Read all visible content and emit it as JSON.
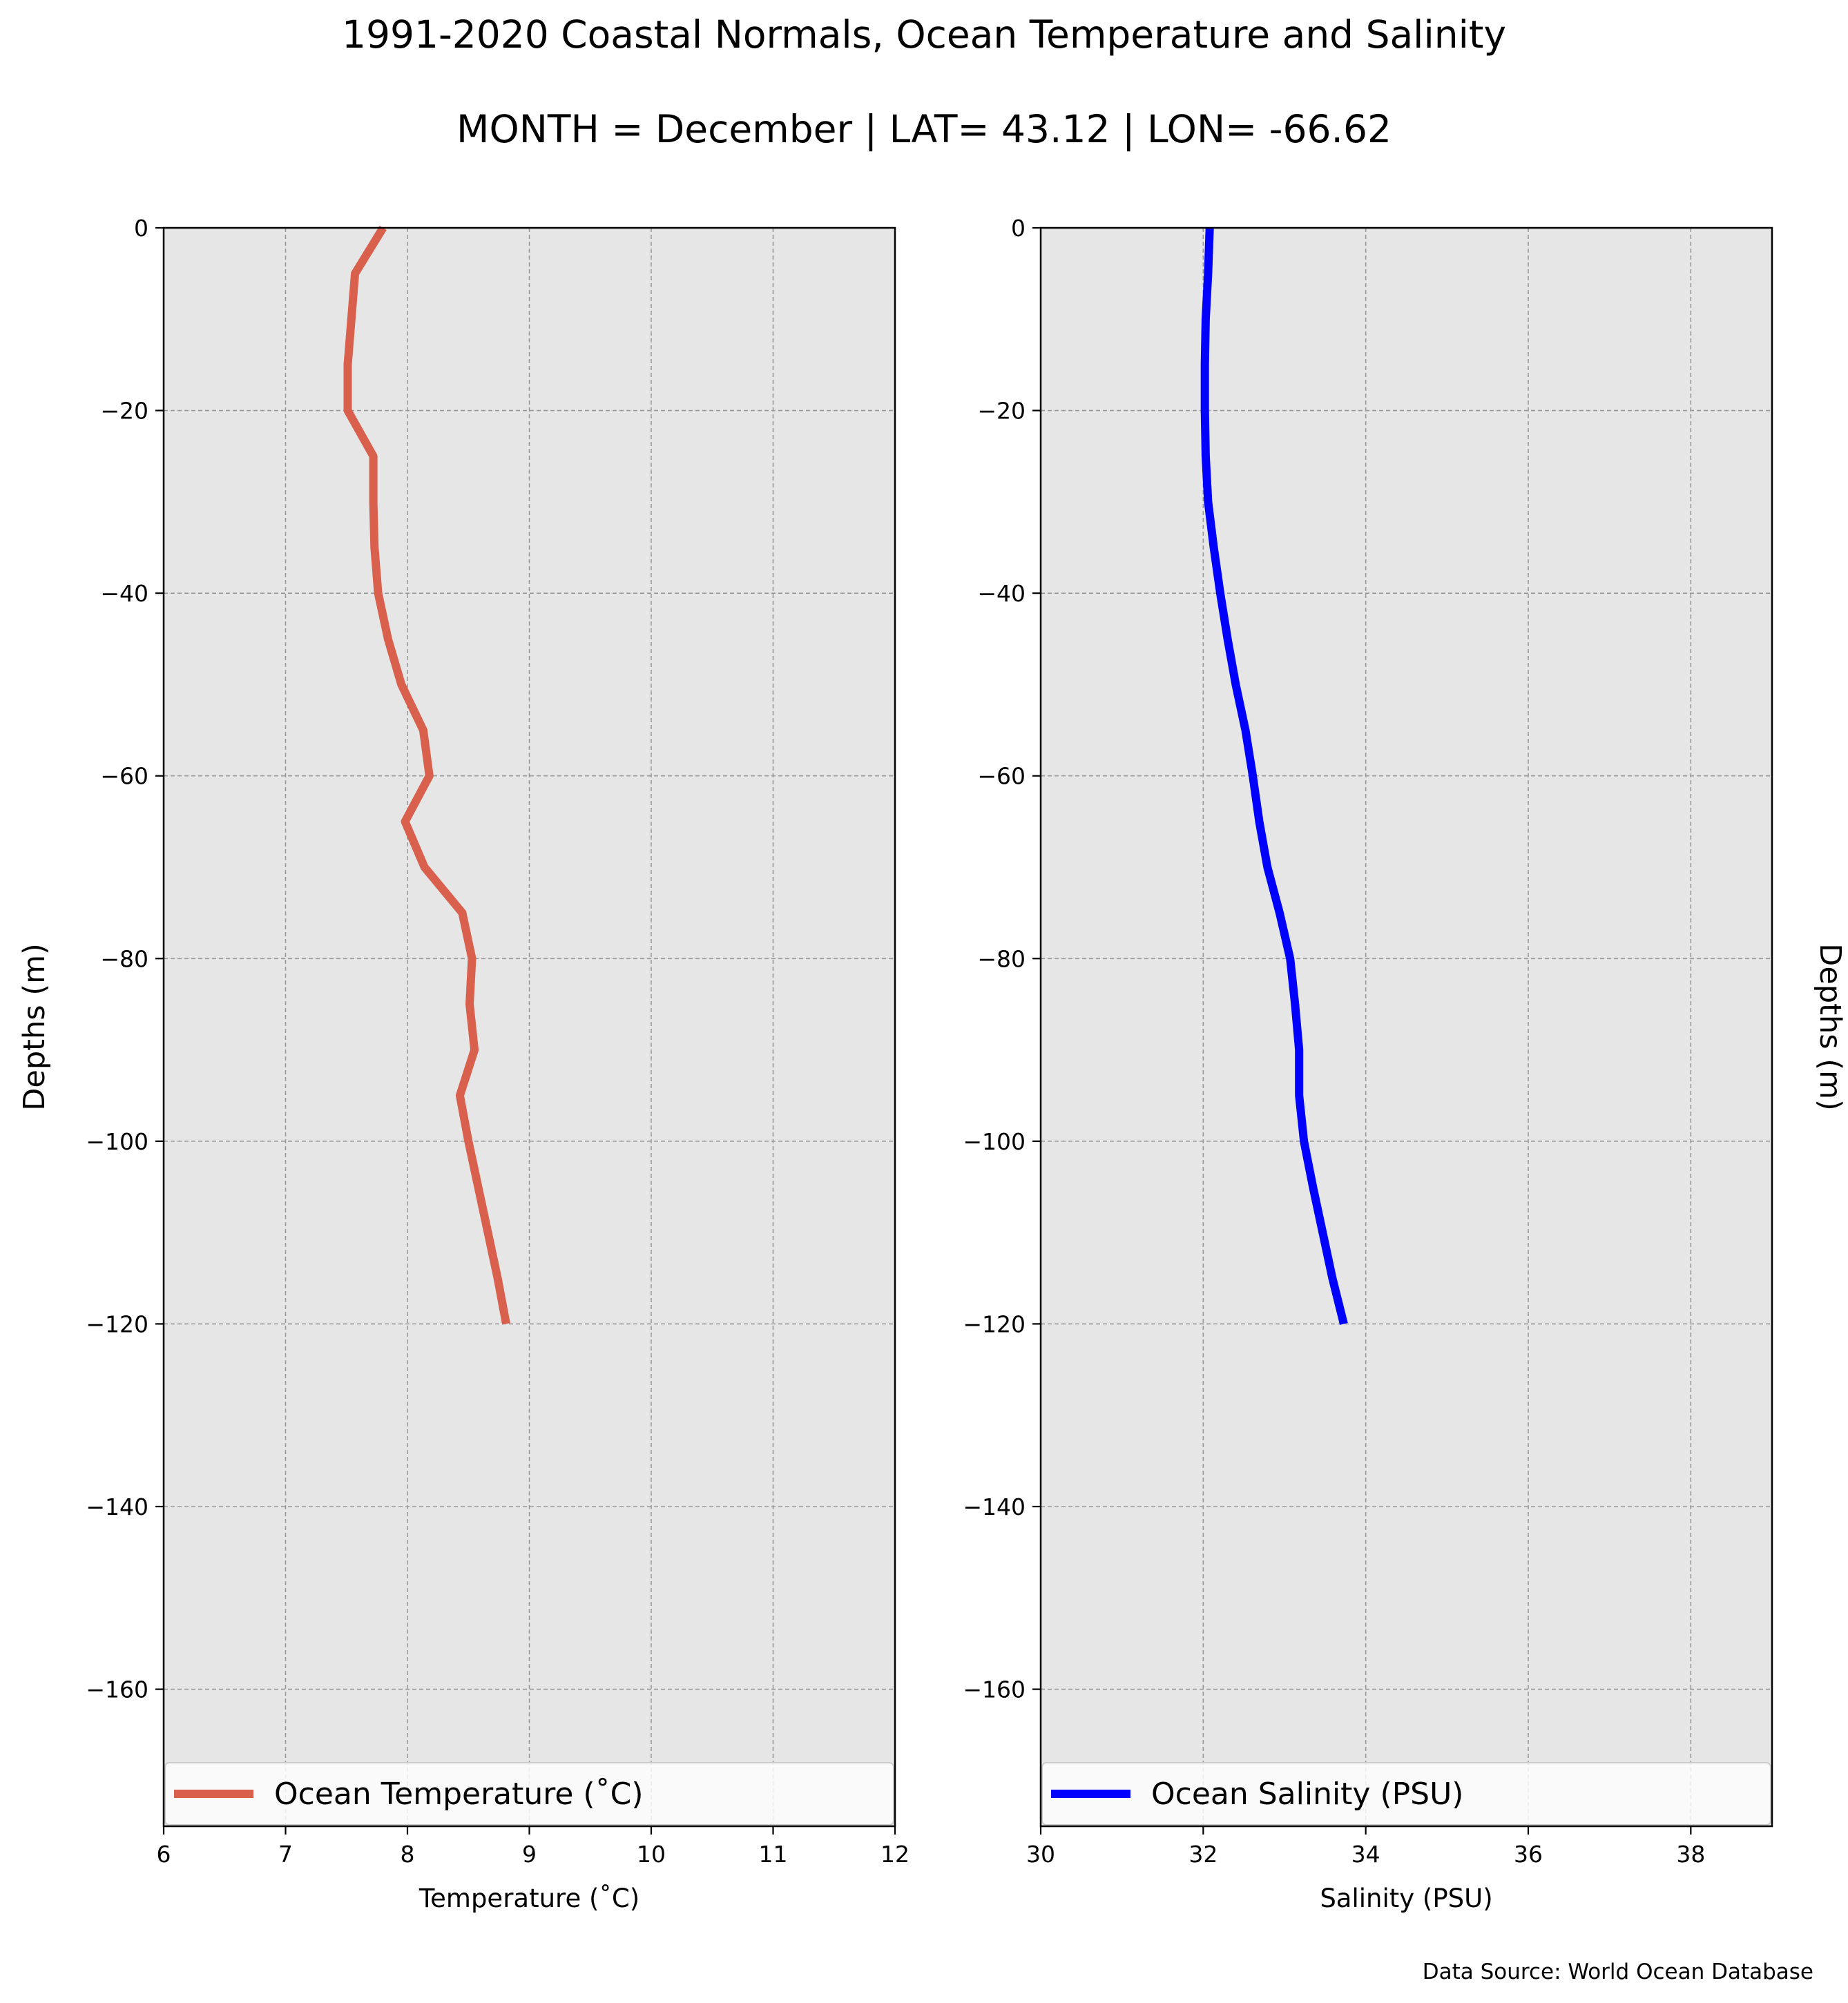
{
  "figure": {
    "title": "1991-2020 Coastal Normals, Ocean Temperature and Salinity",
    "subtitle": "MONTH = December | LAT= 43.12 | LON= -66.62",
    "source": "Data Source: World Ocean Database"
  },
  "chart_data": [
    {
      "type": "line",
      "xlabel": "Temperature ($^\\circ$C)",
      "xlabel_display": "Temperature (˚C)",
      "ylabel": "Depths (m)",
      "ylabel_side": "left",
      "xlim": [
        6,
        12
      ],
      "ylim": [
        -175,
        0
      ],
      "xticks": [
        6,
        7,
        8,
        9,
        10,
        11,
        12
      ],
      "xtick_labels": [
        "6",
        "7",
        "8",
        "9",
        "10",
        "11",
        "12"
      ],
      "yticks": [
        0,
        -20,
        -40,
        -60,
        -80,
        -100,
        -120,
        -140,
        -160
      ],
      "ytick_labels": [
        "0",
        "−20",
        "−40",
        "−60",
        "−80",
        "−100",
        "−120",
        "−140",
        "−160"
      ],
      "grid": true,
      "background": "#e6e6e6",
      "legend": "bottom",
      "series": [
        {
          "name": "Ocean Temperature (˚C)",
          "color": "#d9604d",
          "x": [
            7.8,
            7.57,
            7.54,
            7.51,
            7.51,
            7.72,
            7.72,
            7.73,
            7.76,
            7.84,
            7.95,
            8.13,
            8.18,
            7.98,
            8.14,
            8.45,
            8.53,
            8.51,
            8.55,
            8.43,
            8.5,
            8.58,
            8.66,
            8.74,
            8.81
          ],
          "y": [
            0,
            -5,
            -10,
            -15,
            -20,
            -25,
            -30,
            -35,
            -40,
            -45,
            -50,
            -55,
            -60,
            -65,
            -70,
            -75,
            -80,
            -85,
            -90,
            -95,
            -100,
            -105,
            -110,
            -115,
            -120
          ]
        }
      ]
    },
    {
      "type": "line",
      "xlabel": "Salinity (PSU)",
      "ylabel": "Depths (m)",
      "ylabel_side": "right",
      "xlim": [
        30,
        39
      ],
      "ylim": [
        -175,
        0
      ],
      "xticks": [
        30,
        32,
        34,
        36,
        38
      ],
      "xtick_labels": [
        "30",
        "32",
        "34",
        "36",
        "38"
      ],
      "yticks": [
        0,
        -20,
        -40,
        -60,
        -80,
        -100,
        -120,
        -140,
        -160
      ],
      "ytick_labels": [
        "0",
        "−20",
        "−40",
        "−60",
        "−80",
        "−100",
        "−120",
        "−140",
        "−160"
      ],
      "grid": true,
      "background": "#e6e6e6",
      "legend": "bottom",
      "series": [
        {
          "name": "Ocean Salinity (PSU)",
          "color": "#0000ff",
          "x": [
            32.08,
            32.06,
            32.03,
            32.02,
            32.02,
            32.03,
            32.06,
            32.13,
            32.21,
            32.3,
            32.4,
            32.52,
            32.61,
            32.69,
            32.79,
            32.94,
            33.07,
            33.13,
            33.18,
            33.18,
            33.24,
            33.35,
            33.47,
            33.59,
            33.73
          ],
          "y": [
            0,
            -5,
            -10,
            -15,
            -20,
            -25,
            -30,
            -35,
            -40,
            -45,
            -50,
            -55,
            -60,
            -65,
            -70,
            -75,
            -80,
            -85,
            -90,
            -95,
            -100,
            -105,
            -110,
            -115,
            -120
          ]
        }
      ]
    }
  ]
}
